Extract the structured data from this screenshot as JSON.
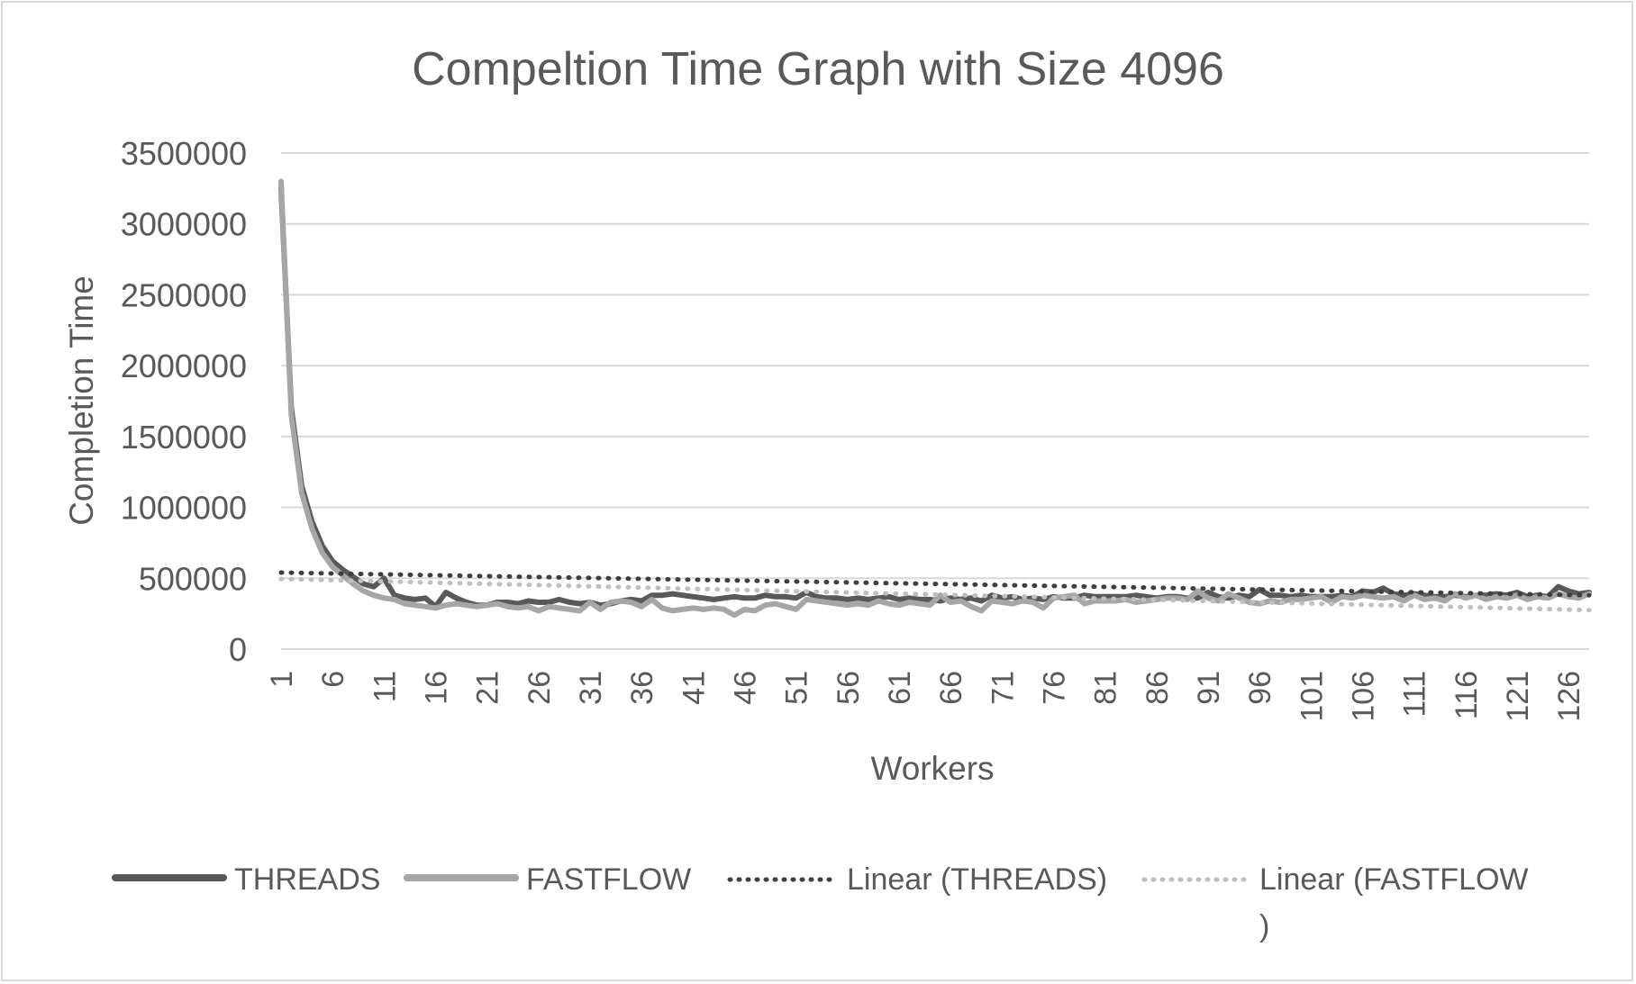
{
  "chart_data": {
    "type": "line",
    "title": "Compeltion Time Graph with Size 4096",
    "xlabel": "Workers",
    "ylabel": "Completion Time",
    "ylim": [
      0,
      3500000
    ],
    "yticks": [
      "3500000",
      "3000000",
      "2500000",
      "2000000",
      "1500000",
      "1000000",
      "500000",
      "0"
    ],
    "ytick_values": [
      3500000,
      3000000,
      2500000,
      2000000,
      1500000,
      1000000,
      500000,
      0
    ],
    "xticks": [
      "1",
      "6",
      "11",
      "16",
      "21",
      "26",
      "31",
      "36",
      "41",
      "46",
      "51",
      "56",
      "61",
      "66",
      "71",
      "76",
      "81",
      "86",
      "91",
      "96",
      "101",
      "106",
      "111",
      "116",
      "121",
      "126"
    ],
    "x_range": [
      1,
      128
    ],
    "grid": "horizontal",
    "legend_position": "bottom",
    "series": [
      {
        "name": "THREADS",
        "color": "#595959",
        "style": "solid",
        "x": [
          1,
          2,
          3,
          4,
          5,
          6,
          7,
          8,
          9,
          10,
          11,
          12,
          13,
          14,
          15,
          16,
          17,
          18,
          19,
          20,
          21,
          22,
          23,
          24,
          25,
          26,
          27,
          28,
          29,
          30,
          31,
          32,
          33,
          34,
          35,
          36,
          37,
          38,
          39,
          40,
          41,
          42,
          43,
          44,
          45,
          46,
          47,
          48,
          49,
          50,
          51,
          52,
          53,
          54,
          55,
          56,
          57,
          58,
          59,
          60,
          61,
          62,
          63,
          64,
          65,
          66,
          67,
          68,
          69,
          70,
          71,
          72,
          73,
          74,
          75,
          76,
          77,
          78,
          79,
          80,
          81,
          82,
          83,
          84,
          85,
          86,
          87,
          88,
          89,
          90,
          91,
          92,
          93,
          94,
          95,
          96,
          97,
          98,
          99,
          100,
          101,
          102,
          103,
          104,
          105,
          106,
          107,
          108,
          109,
          110,
          111,
          112,
          113,
          114,
          115,
          116,
          117,
          118,
          119,
          120,
          121,
          122,
          123,
          124,
          125,
          126,
          127,
          128
        ],
        "values": [
          3250000,
          1700000,
          1150000,
          900000,
          730000,
          620000,
          560000,
          510000,
          460000,
          440000,
          500000,
          380000,
          360000,
          350000,
          360000,
          300000,
          400000,
          360000,
          330000,
          310000,
          310000,
          330000,
          330000,
          320000,
          340000,
          330000,
          330000,
          350000,
          330000,
          320000,
          330000,
          310000,
          320000,
          340000,
          350000,
          340000,
          380000,
          380000,
          390000,
          380000,
          370000,
          360000,
          350000,
          360000,
          370000,
          360000,
          360000,
          380000,
          370000,
          370000,
          360000,
          400000,
          370000,
          360000,
          360000,
          350000,
          360000,
          350000,
          360000,
          370000,
          350000,
          360000,
          350000,
          350000,
          340000,
          360000,
          350000,
          360000,
          340000,
          380000,
          360000,
          370000,
          350000,
          360000,
          350000,
          370000,
          360000,
          360000,
          380000,
          370000,
          370000,
          370000,
          370000,
          380000,
          370000,
          360000,
          370000,
          370000,
          360000,
          360000,
          400000,
          370000,
          360000,
          380000,
          370000,
          420000,
          380000,
          380000,
          370000,
          380000,
          370000,
          370000,
          370000,
          380000,
          370000,
          410000,
          400000,
          430000,
          390000,
          380000,
          390000,
          380000,
          370000,
          370000,
          380000,
          370000,
          380000,
          380000,
          390000,
          380000,
          400000,
          370000,
          380000,
          370000,
          440000,
          410000,
          390000,
          400000
        ]
      },
      {
        "name": "FASTFLOW",
        "color": "#a6a6a6",
        "style": "solid",
        "x": [
          1,
          2,
          3,
          4,
          5,
          6,
          7,
          8,
          9,
          10,
          11,
          12,
          13,
          14,
          15,
          16,
          17,
          18,
          19,
          20,
          21,
          22,
          23,
          24,
          25,
          26,
          27,
          28,
          29,
          30,
          31,
          32,
          33,
          34,
          35,
          36,
          37,
          38,
          39,
          40,
          41,
          42,
          43,
          44,
          45,
          46,
          47,
          48,
          49,
          50,
          51,
          52,
          53,
          54,
          55,
          56,
          57,
          58,
          59,
          60,
          61,
          62,
          63,
          64,
          65,
          66,
          67,
          68,
          69,
          70,
          71,
          72,
          73,
          74,
          75,
          76,
          77,
          78,
          79,
          80,
          81,
          82,
          83,
          84,
          85,
          86,
          87,
          88,
          89,
          90,
          91,
          92,
          93,
          94,
          95,
          96,
          97,
          98,
          99,
          100,
          101,
          102,
          103,
          104,
          105,
          106,
          107,
          108,
          109,
          110,
          111,
          112,
          113,
          114,
          115,
          116,
          117,
          118,
          119,
          120,
          121,
          122,
          123,
          124,
          125,
          126,
          127,
          128
        ],
        "values": [
          3300000,
          1650000,
          1100000,
          850000,
          680000,
          580000,
          520000,
          460000,
          410000,
          380000,
          360000,
          350000,
          320000,
          310000,
          300000,
          290000,
          310000,
          320000,
          310000,
          300000,
          310000,
          320000,
          300000,
          290000,
          300000,
          270000,
          300000,
          290000,
          280000,
          270000,
          330000,
          280000,
          330000,
          340000,
          330000,
          300000,
          350000,
          290000,
          270000,
          280000,
          290000,
          280000,
          290000,
          280000,
          240000,
          280000,
          270000,
          310000,
          320000,
          300000,
          280000,
          350000,
          340000,
          330000,
          320000,
          310000,
          320000,
          310000,
          340000,
          320000,
          310000,
          330000,
          320000,
          310000,
          380000,
          330000,
          340000,
          300000,
          270000,
          340000,
          330000,
          320000,
          340000,
          330000,
          290000,
          360000,
          370000,
          380000,
          320000,
          340000,
          340000,
          340000,
          350000,
          330000,
          340000,
          350000,
          360000,
          360000,
          350000,
          410000,
          360000,
          340000,
          390000,
          360000,
          330000,
          320000,
          340000,
          330000,
          350000,
          350000,
          360000,
          370000,
          330000,
          370000,
          360000,
          380000,
          370000,
          360000,
          370000,
          340000,
          380000,
          350000,
          360000,
          340000,
          390000,
          360000,
          380000,
          350000,
          370000,
          360000,
          380000,
          350000,
          370000,
          360000,
          390000,
          370000,
          360000,
          390000
        ]
      },
      {
        "name": "Linear (THREADS)",
        "color": "#3f3f3f",
        "style": "dotted",
        "x": [
          1,
          128
        ],
        "values": [
          540000,
          380000
        ]
      },
      {
        "name": "Linear (FASTFLOW)",
        "color": "#bfbfbf",
        "style": "dotted",
        "x": [
          1,
          128
        ],
        "values": [
          495000,
          275000
        ]
      }
    ]
  },
  "legend": [
    {
      "label": "THREADS",
      "color": "#595959",
      "style": "solid"
    },
    {
      "label": "FASTFLOW",
      "color": "#a6a6a6",
      "style": "solid"
    },
    {
      "label": "Linear (THREADS)",
      "color": "#3f3f3f",
      "style": "dotted"
    },
    {
      "label": "Linear (FASTFLOW",
      "label_cont": ")",
      "color": "#bfbfbf",
      "style": "dotted"
    }
  ]
}
